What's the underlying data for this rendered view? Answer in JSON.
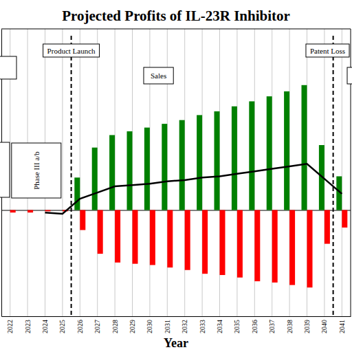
{
  "chart_data": {
    "type": "bar",
    "title": "Projected Profits of IL-23R Inhibitor",
    "x_label": "Year",
    "categories": [
      "2022",
      "2023",
      "2024",
      "2025",
      "2026",
      "2027",
      "2028",
      "2029",
      "2030",
      "2031",
      "2032",
      "2033",
      "2034",
      "2035",
      "2036",
      "2037",
      "2038",
      "2039",
      "2040",
      "2041"
    ],
    "series": [
      {
        "type": "bar",
        "color": "#008000",
        "values": [
          0,
          0,
          0,
          0,
          26,
          50,
          60,
          63,
          66,
          69,
          72,
          76,
          79,
          83,
          87,
          91,
          95,
          100,
          52,
          27
        ]
      },
      {
        "type": "bar",
        "color": "#ff0000",
        "values": [
          -2,
          -2,
          -1,
          -1,
          -16,
          -35,
          -42,
          -43,
          -44,
          -46,
          -48,
          -51,
          -52,
          -54,
          -57,
          -58,
          -60,
          -62,
          -27,
          -14
        ]
      },
      {
        "type": "line",
        "color": "#000000",
        "values": [
          null,
          null,
          -2,
          -3,
          9,
          14,
          19,
          20,
          21,
          23,
          24,
          26,
          27,
          29,
          31,
          33,
          35,
          37,
          25,
          13
        ]
      }
    ],
    "ylim": [
      -85,
      145
    ],
    "yticks": [
      0
    ],
    "grid": true,
    "tick_labels": "x",
    "events": [
      {
        "label": "Product Launch",
        "after": "2025"
      },
      {
        "label": "Patent Loss",
        "after": "2040"
      }
    ],
    "annotations": [
      "Sales",
      "Phase III a/b"
    ]
  }
}
